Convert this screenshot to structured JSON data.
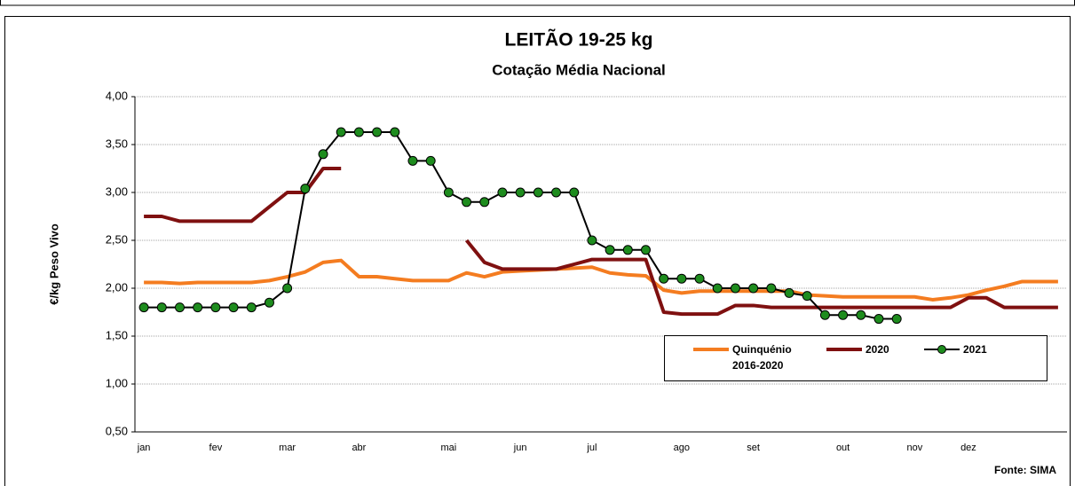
{
  "chart_data": {
    "type": "line",
    "title": "LEITÃO 19-25 kg",
    "subtitle": "Cotação Média Nacional",
    "y_label": "€/kg Peso Vivo",
    "source": "Fonte: SIMA",
    "categories": [
      "jan",
      null,
      null,
      null,
      "fev",
      null,
      null,
      null,
      "mar",
      null,
      null,
      null,
      "abr",
      null,
      null,
      null,
      null,
      "mai",
      null,
      null,
      null,
      "jun",
      null,
      null,
      null,
      "jul",
      null,
      null,
      null,
      null,
      "ago",
      null,
      null,
      null,
      "set",
      null,
      null,
      null,
      null,
      "out",
      null,
      null,
      null,
      "nov",
      null,
      null,
      "dez",
      null,
      null,
      null,
      null,
      null
    ],
    "series": [
      {
        "name": "Quinquénio 2016-2020",
        "color": "#f47c20",
        "marker": null,
        "values": [
          2.06,
          2.06,
          2.05,
          2.06,
          2.06,
          2.06,
          2.06,
          2.08,
          2.12,
          2.17,
          2.27,
          2.29,
          2.12,
          2.12,
          2.1,
          2.08,
          2.08,
          2.08,
          2.16,
          2.12,
          2.17,
          2.18,
          2.19,
          2.2,
          2.21,
          2.22,
          2.16,
          2.14,
          2.13,
          1.98,
          1.95,
          1.97,
          1.97,
          1.97,
          1.97,
          1.97,
          1.97,
          1.93,
          1.92,
          1.91,
          1.91,
          1.91,
          1.91,
          1.91,
          1.88,
          1.9,
          1.93,
          1.98,
          2.02,
          2.07,
          2.07,
          2.07
        ]
      },
      {
        "name": "2020",
        "color": "#7f1010",
        "marker": null,
        "values": [
          2.75,
          2.75,
          2.7,
          2.7,
          2.7,
          2.7,
          2.7,
          2.85,
          3.0,
          3.0,
          3.25,
          3.25,
          null,
          null,
          null,
          null,
          null,
          null,
          2.5,
          2.27,
          2.2,
          2.2,
          2.2,
          2.2,
          2.25,
          2.3,
          2.3,
          2.3,
          2.3,
          1.75,
          1.73,
          1.73,
          1.73,
          1.82,
          1.82,
          1.8,
          1.8,
          1.8,
          1.8,
          1.8,
          1.8,
          1.8,
          1.8,
          1.8,
          1.8,
          1.8,
          1.9,
          1.9,
          1.8,
          1.8,
          1.8,
          1.8
        ]
      },
      {
        "name": "2021",
        "color": "#000000",
        "marker": "#1e8c1e",
        "values": [
          1.8,
          1.8,
          1.8,
          1.8,
          1.8,
          1.8,
          1.8,
          1.85,
          2.0,
          3.04,
          3.4,
          3.63,
          3.63,
          3.63,
          3.63,
          3.33,
          3.33,
          3.0,
          2.9,
          2.9,
          3.0,
          3.0,
          3.0,
          3.0,
          3.0,
          2.5,
          2.4,
          2.4,
          2.4,
          2.1,
          2.1,
          2.1,
          2.0,
          2.0,
          2.0,
          2.0,
          1.95,
          1.92,
          1.72,
          1.72,
          1.72,
          1.68,
          1.68,
          null,
          null,
          null,
          null,
          null,
          null,
          null,
          null,
          null
        ]
      }
    ],
    "ylim": [
      0.5,
      4
    ],
    "yticks": [
      {
        "value": 0.5,
        "label": "0,50"
      },
      {
        "value": 1,
        "label": "1,00"
      },
      {
        "value": 1.5,
        "label": "1,50"
      },
      {
        "value": 2,
        "label": "2,00"
      },
      {
        "value": 2.5,
        "label": "2,50"
      },
      {
        "value": 3,
        "label": "3,00"
      },
      {
        "value": 3.5,
        "label": "3,50"
      },
      {
        "value": 4,
        "label": "4,00"
      }
    ],
    "grid": true
  }
}
